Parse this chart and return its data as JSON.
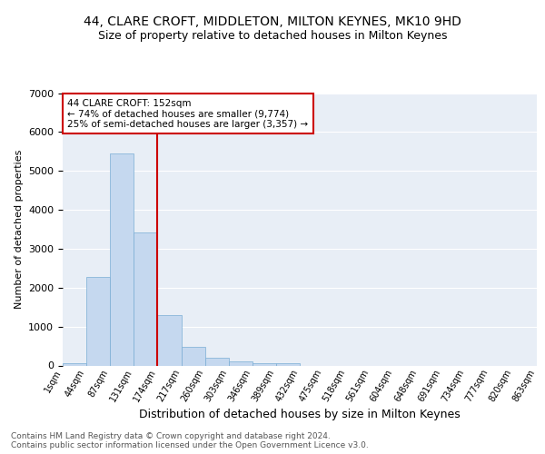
{
  "title1": "44, CLARE CROFT, MIDDLETON, MILTON KEYNES, MK10 9HD",
  "title2": "Size of property relative to detached houses in Milton Keynes",
  "xlabel": "Distribution of detached houses by size in Milton Keynes",
  "ylabel": "Number of detached properties",
  "bar_values": [
    70,
    2270,
    5450,
    3420,
    1300,
    490,
    200,
    100,
    60,
    50,
    0,
    0,
    0,
    0,
    0,
    0,
    0,
    0,
    0,
    0
  ],
  "bar_labels": [
    "1sqm",
    "44sqm",
    "87sqm",
    "131sqm",
    "174sqm",
    "217sqm",
    "260sqm",
    "303sqm",
    "346sqm",
    "389sqm",
    "432sqm",
    "475sqm",
    "518sqm",
    "561sqm",
    "604sqm",
    "648sqm",
    "691sqm",
    "734sqm",
    "777sqm",
    "820sqm",
    "863sqm"
  ],
  "bar_color": "#c5d8ef",
  "bar_edge_color": "#7aadd4",
  "vline_color": "#cc0000",
  "annotation_text": "44 CLARE CROFT: 152sqm\n← 74% of detached houses are smaller (9,774)\n25% of semi-detached houses are larger (3,357) →",
  "annotation_box_color": "#ffffff",
  "annotation_box_edge": "#cc0000",
  "ylim": [
    0,
    7000
  ],
  "yticks": [
    0,
    1000,
    2000,
    3000,
    4000,
    5000,
    6000,
    7000
  ],
  "bg_color": "#ffffff",
  "plot_bg_color": "#e8eef6",
  "footer": "Contains HM Land Registry data © Crown copyright and database right 2024.\nContains public sector information licensed under the Open Government Licence v3.0.",
  "title1_fontsize": 10,
  "title2_fontsize": 9,
  "xlabel_fontsize": 9,
  "ylabel_fontsize": 8,
  "grid_color": "#ffffff",
  "tick_label_fontsize": 7,
  "footer_fontsize": 6.5
}
